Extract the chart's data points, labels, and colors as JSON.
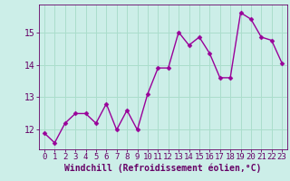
{
  "x": [
    0,
    1,
    2,
    3,
    4,
    5,
    6,
    7,
    8,
    9,
    10,
    11,
    12,
    13,
    14,
    15,
    16,
    17,
    18,
    19,
    20,
    21,
    22,
    23
  ],
  "y": [
    11.9,
    11.6,
    12.2,
    12.5,
    12.5,
    12.2,
    12.8,
    12.0,
    12.6,
    12.0,
    13.1,
    13.9,
    13.9,
    15.0,
    14.6,
    14.85,
    14.35,
    13.6,
    13.6,
    15.6,
    15.4,
    14.85,
    14.75,
    14.05
  ],
  "line_color": "#990099",
  "marker_color": "#990099",
  "bg_color": "#cceee8",
  "grid_color": "#aaddcc",
  "xlabel": "Windchill (Refroidissement éolien,°C)",
  "xlim": [
    -0.5,
    23.5
  ],
  "ylim": [
    11.4,
    15.85
  ],
  "yticks": [
    12,
    13,
    14,
    15
  ],
  "axis_color": "#660066",
  "font_size_xlabel": 7.0,
  "font_size_tick": 6.5,
  "line_width": 1.0,
  "marker_size": 2.5
}
